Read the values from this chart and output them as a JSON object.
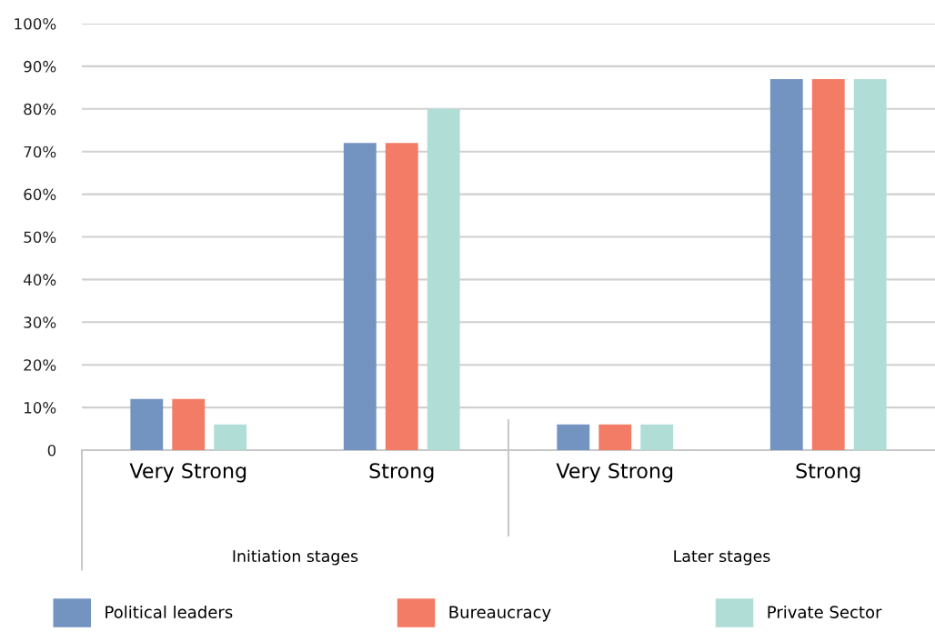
{
  "chart_data": {
    "type": "bar",
    "categories": [
      "Very Strong",
      "Strong",
      "Very Strong",
      "Strong"
    ],
    "series": [
      {
        "name": "Political leaders",
        "color": "#7393c0",
        "values": [
          12,
          72,
          6,
          87
        ]
      },
      {
        "name": "Bureaucracy",
        "color": "#f27c66",
        "values": [
          12,
          72,
          6,
          87
        ]
      },
      {
        "name": "Private Sector",
        "color": "#b0ded6",
        "values": [
          6,
          80,
          6,
          87
        ]
      }
    ],
    "ylim": [
      0,
      100
    ],
    "yticks": [
      0,
      {
        "value": 10,
        "label": "10%"
      },
      {
        "value": 20,
        "label": "20%"
      },
      {
        "value": 30,
        "label": "30%"
      },
      {
        "value": 40,
        "label": "40%"
      },
      {
        "value": 50,
        "label": "50%"
      },
      {
        "value": 60,
        "label": "60%"
      },
      {
        "value": 70,
        "label": "70%"
      },
      {
        "value": 80,
        "label": "80%"
      },
      {
        "value": 90,
        "label": "90%"
      },
      {
        "value": 100,
        "label": "100%"
      }
    ],
    "grid": "y",
    "legend": "bottom",
    "annotations": [
      "Initiation stages",
      "Later stages"
    ]
  }
}
